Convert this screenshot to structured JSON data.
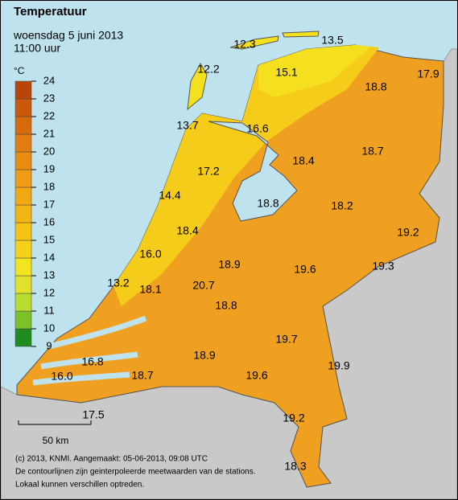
{
  "header": {
    "title": "Temperatuur",
    "date": "woensdag 5 juni 2013",
    "time": "11:00 uur"
  },
  "legend": {
    "unit": "°C",
    "ticks": [
      9,
      10,
      11,
      12,
      13,
      14,
      15,
      16,
      17,
      18,
      19,
      20,
      21,
      22,
      23,
      24
    ],
    "colors": [
      "#1e8c1e",
      "#7cc02a",
      "#b8dc30",
      "#e2e22a",
      "#f2e41e",
      "#f5d21a",
      "#f5c314",
      "#f3b512",
      "#f1a814",
      "#ef9c16",
      "#e98c12",
      "#e27c10",
      "#d86a0e",
      "#cb580c",
      "#b8460a"
    ]
  },
  "stations": {
    "values": [
      12.3,
      13.5,
      12.2,
      15.1,
      18.8,
      17.9,
      13.7,
      16.6,
      18.7,
      17.2,
      18.4,
      14.4,
      18.8,
      18.2,
      19.2,
      18.4,
      16.0,
      18.9,
      19.6,
      19.3,
      13.2,
      18.1,
      20.7,
      18.8,
      19.7,
      18.9,
      19.9,
      16.8,
      19.6,
      16.0,
      18.7,
      17.5,
      19.2,
      18.3
    ],
    "value_labels": [
      "12.3",
      "13.5",
      "12.2",
      "15.1",
      "18.8",
      "17.9",
      "13.7",
      "16.6",
      "18.7",
      "17.2",
      "18.4",
      "14.4",
      "18.8",
      "18.2",
      "19.2",
      "18.4",
      "16.0",
      "18.9",
      "19.6",
      "19.3",
      "13.2",
      "18.1",
      "20.7",
      "18.8",
      "19.7",
      "18.9",
      "19.9",
      "16.8",
      "19.6",
      "16.0",
      "18.7",
      "17.5",
      "19.2",
      "18.3"
    ]
  },
  "scale_label": "50 km",
  "footer": [
    "(c) 2013, KNMI. Aangemaakt: 05-06-2013, 09:08 UTC",
    "De contourlijnen zijn geinterpoleerde meetwaarden van de stations.",
    "Lokaal kunnen verschillen optreden."
  ]
}
